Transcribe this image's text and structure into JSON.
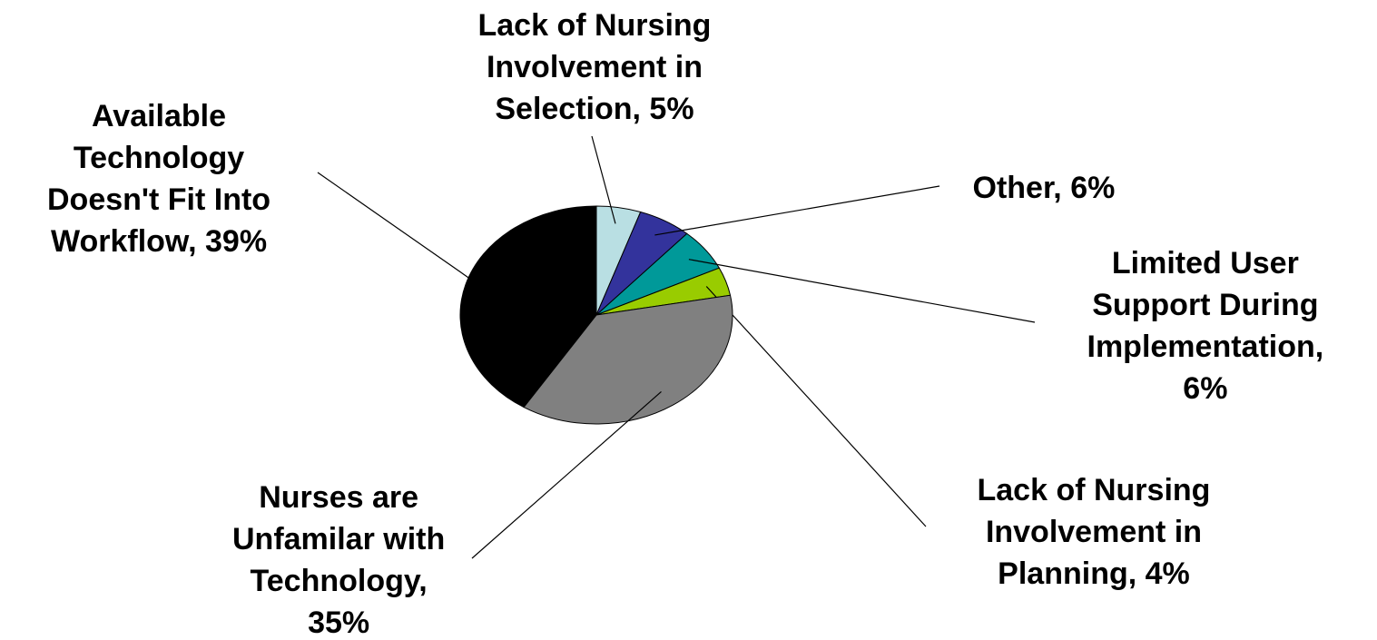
{
  "chart_data": {
    "type": "pie",
    "values": [
      5,
      6,
      6,
      4,
      35,
      39
    ],
    "value_labels": [
      "Lack of Nursing\nInvolvement in\nSelection, 5%",
      "Other, 6%",
      "Limited User\nSupport During\nImplementation,\n6%",
      "Lack of Nursing\nInvolvement in\nPlanning, 4%",
      "Nurses are\nUnfamilar with\nTechnology,\n35%",
      "Available\nTechnology\nDoesn't Fit Into\nWorkflow, 39%"
    ],
    "colors": [
      "#b9dfe3",
      "#33339c",
      "#009999",
      "#99cc00",
      "#808080",
      "#000000"
    ]
  }
}
